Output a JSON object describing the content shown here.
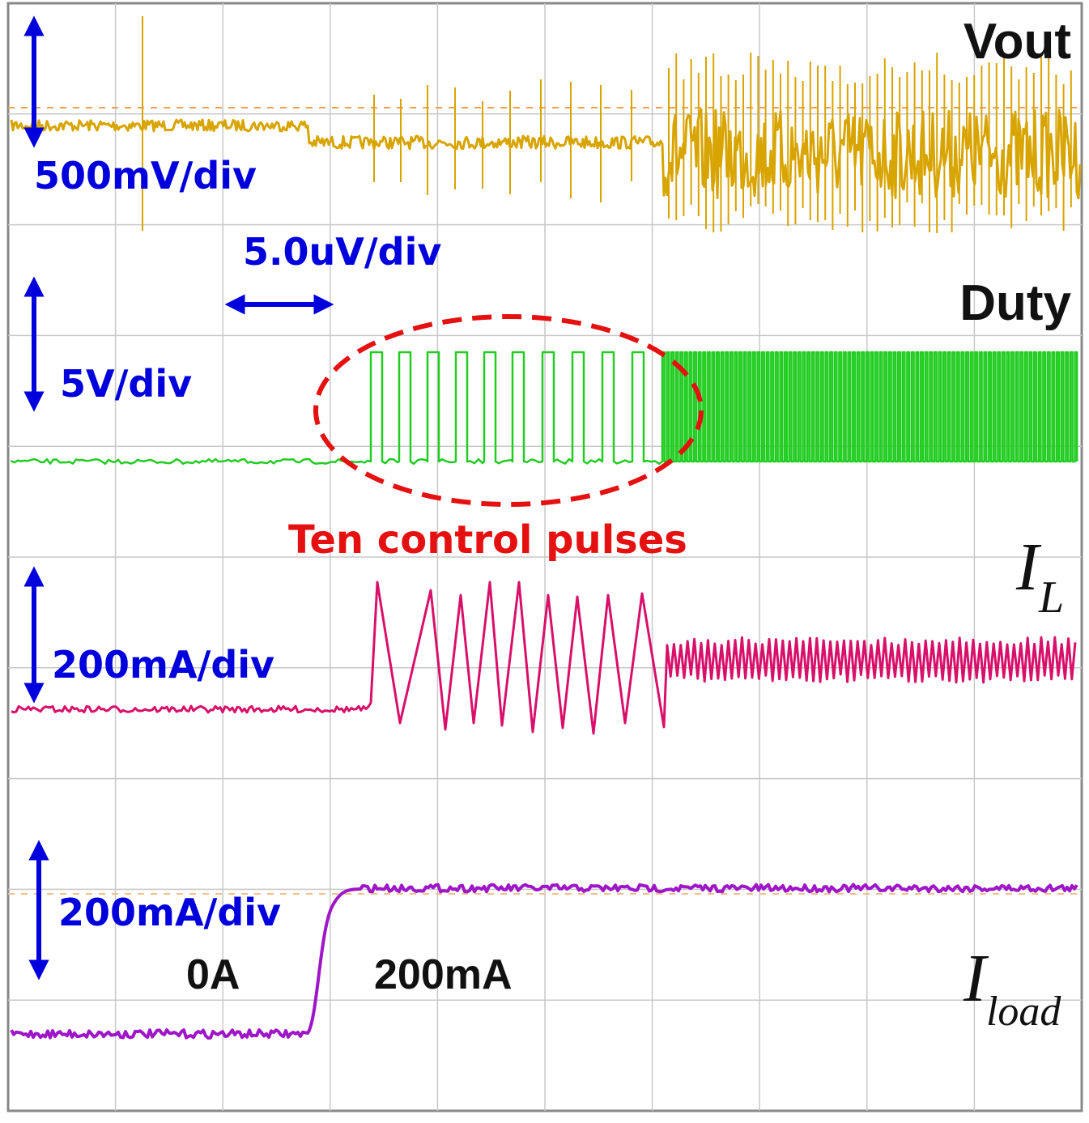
{
  "chart_data": {
    "type": "line",
    "grid": true,
    "traces": [
      {
        "id": "vout",
        "name": "Vout",
        "scale": "500mV/div",
        "color": "#d8a400"
      },
      {
        "id": "duty",
        "name": "Duty",
        "scale": "5V/div",
        "color": "#22cc22"
      },
      {
        "id": "il",
        "name": "I",
        "subscript": "L",
        "scale": "200mA/div",
        "color": "#d8106a"
      },
      {
        "id": "iload",
        "name": "I",
        "subscript": "load",
        "scale": "200mA/div",
        "color": "#9e16c8"
      }
    ],
    "timebase": "5.0uV/div",
    "annotation": "Ten control pulses",
    "iload_levels": {
      "before": "0A",
      "after": "200mA"
    },
    "pulse_count": 10
  }
}
